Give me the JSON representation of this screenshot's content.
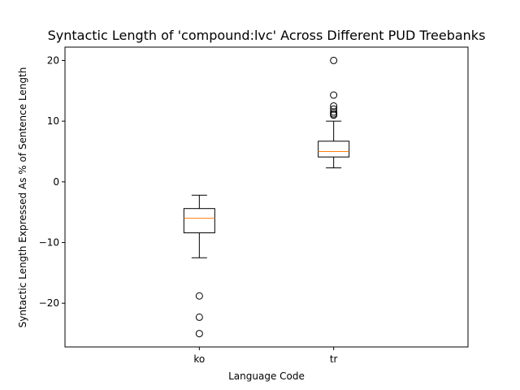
{
  "chart_data": {
    "type": "box",
    "title": "Syntactic Length of 'compound:lvc' Across Different PUD Treebanks",
    "xlabel": "Language Code",
    "ylabel": "Syntactic Length Expressed As % of Sentence Length",
    "ylim": [
      -27.2,
      22.2
    ],
    "yticks": [
      -20,
      -10,
      0,
      10,
      20
    ],
    "grid": false,
    "categories": [
      "ko",
      "tr"
    ],
    "boxes": [
      {
        "category": "ko",
        "whisker_low": -12.5,
        "q1": -8.4,
        "median": -6.0,
        "q3": -4.4,
        "whisker_high": -2.2,
        "outliers": [
          -18.8,
          -22.3,
          -25.0
        ]
      },
      {
        "category": "tr",
        "whisker_low": 2.3,
        "q1": 4.1,
        "median": 5.0,
        "q3": 6.7,
        "whisker_high": 10.0,
        "outliers": [
          11.0,
          11.2,
          11.5,
          12.0,
          12.5,
          14.3,
          20.0
        ]
      }
    ],
    "colors": {
      "box": "#000000",
      "median": "#ff7f0e",
      "outlier": "#000000"
    }
  }
}
